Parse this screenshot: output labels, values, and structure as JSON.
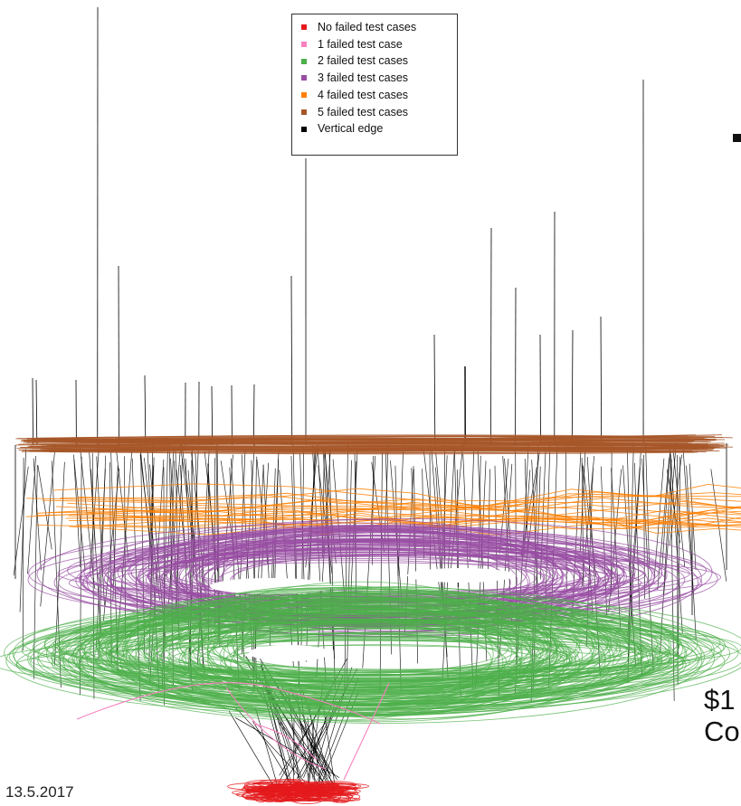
{
  "legend": {
    "items": [
      {
        "label": "No failed test cases",
        "color": "#e41a1c"
      },
      {
        "label": "1 failed test case",
        "color": "#f781bf"
      },
      {
        "label": "2 failed test cases",
        "color": "#4daf4a"
      },
      {
        "label": "3 failed test cases",
        "color": "#984ea3"
      },
      {
        "label": "4 failed test cases",
        "color": "#ff7f00"
      },
      {
        "label": "5 failed test cases",
        "color": "#a65628"
      },
      {
        "label": "Vertical edge",
        "color": "#000000"
      }
    ]
  },
  "footer": {
    "date": "13.5.2017"
  },
  "side_text": {
    "line1": "$1",
    "line2": "Co"
  },
  "colors": {
    "none": "#e41a1c",
    "one": "#f781bf",
    "two": "#4daf4a",
    "three": "#984ea3",
    "four": "#ff7f00",
    "five": "#a65628",
    "edge": "#000000"
  }
}
